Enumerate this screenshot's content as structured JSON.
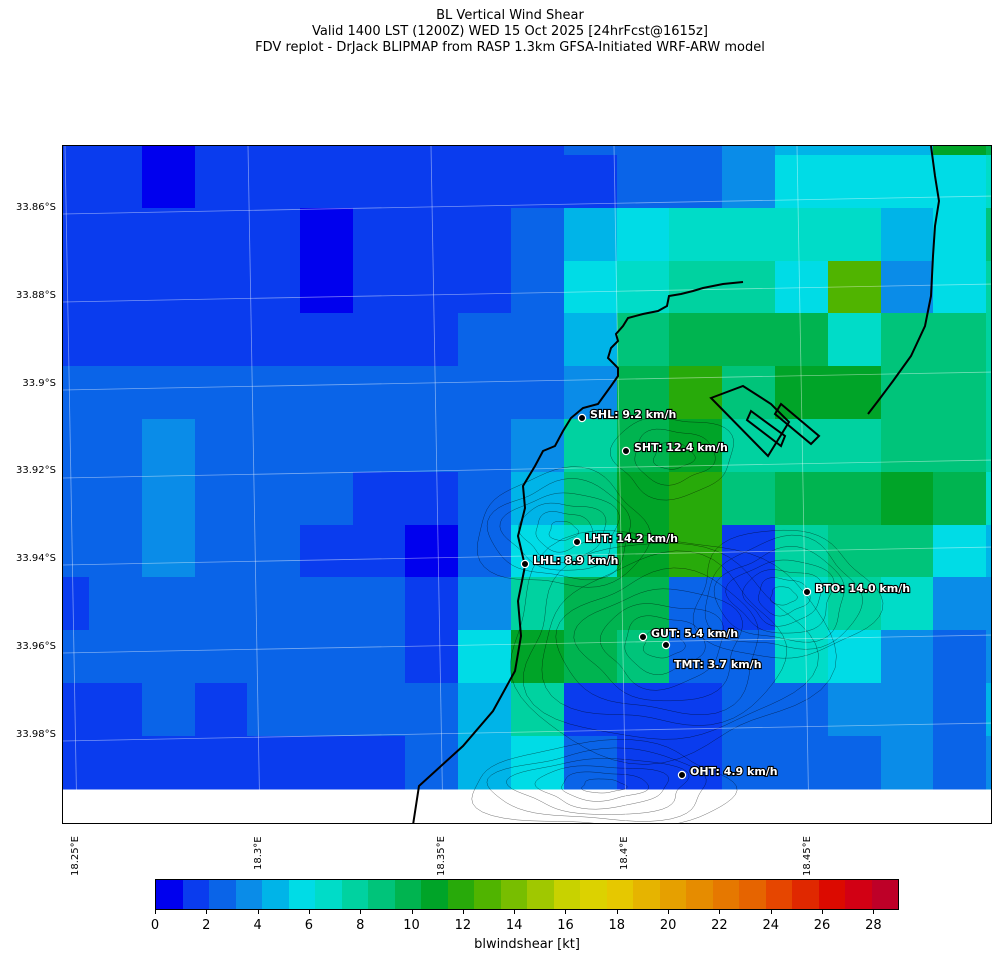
{
  "header": {
    "title": "BL Vertical Wind Shear",
    "valid_line": "Valid 1400 LST (1200Z) WED 15 Oct 2025 [24hrFcst@1615z]",
    "source_line": "FDV replot - DrJack BLIPMAP from RASP 1.3km GFSA-Initiated WRF-ARW model"
  },
  "axes": {
    "lat_labels": [
      "33.86°S",
      "33.88°S",
      "33.9°S",
      "33.92°S",
      "33.94°S",
      "33.96°S",
      "33.98°S"
    ],
    "lon_labels": [
      "18.25°E",
      "18.3°E",
      "18.35°E",
      "18.4°E",
      "18.45°E"
    ]
  },
  "colorbar": {
    "label": "blwindshear [kt]",
    "ticks": [
      "0",
      "2",
      "4",
      "6",
      "8",
      "10",
      "12",
      "14",
      "16",
      "18",
      "20",
      "22",
      "24",
      "26",
      "28"
    ],
    "colors": [
      "#0000ee",
      "#0a3cee",
      "#0a64e8",
      "#0a8ce8",
      "#00b4e8",
      "#00dce6",
      "#00dcc8",
      "#00d2a0",
      "#00c47a",
      "#00b450",
      "#00a428",
      "#28aa0a",
      "#50b400",
      "#78be00",
      "#a0c800",
      "#c8d200",
      "#dcd200",
      "#e6c800",
      "#e6b400",
      "#e6a000",
      "#e68c00",
      "#e67800",
      "#e66400",
      "#e64600",
      "#e02800",
      "#dc0a00",
      "#d20014",
      "#be0028"
    ],
    "range": [
      0,
      29
    ]
  },
  "stations": [
    {
      "label": "SHL: 9.2 km/h",
      "value_kmh": 9.2
    },
    {
      "label": "SHT: 12.4 km/h",
      "value_kmh": 12.4
    },
    {
      "label": "LHT: 14.2 km/h",
      "value_kmh": 14.2
    },
    {
      "label": "LHL: 8.9 km/h",
      "value_kmh": 8.9
    },
    {
      "label": "BTO: 14.0 km/h",
      "value_kmh": 14.0
    },
    {
      "label": "GUT: 5.4 km/h",
      "value_kmh": 5.4
    },
    {
      "label": "TMT: 3.7 km/h",
      "value_kmh": 3.7
    },
    {
      "label": "OHT: 4.9 km/h",
      "value_kmh": 4.9
    }
  ],
  "grid_values_kt": [
    [
      1,
      1,
      0,
      1,
      1,
      1,
      1,
      1,
      1,
      1,
      2,
      2,
      2,
      3,
      4,
      4,
      4,
      10,
      9
    ],
    [
      1,
      1,
      0,
      1,
      1,
      1,
      1,
      1,
      1,
      1,
      1,
      2,
      2,
      3,
      5,
      5,
      5,
      5,
      6
    ],
    [
      1,
      1,
      1,
      1,
      1,
      0,
      1,
      1,
      1,
      2,
      4,
      5,
      6,
      6,
      6,
      6,
      4,
      5,
      8
    ],
    [
      1,
      1,
      1,
      1,
      1,
      0,
      1,
      1,
      1,
      2,
      5,
      6,
      7,
      7,
      5,
      12,
      3,
      5,
      7
    ],
    [
      1,
      1,
      1,
      1,
      1,
      1,
      1,
      1,
      2,
      2,
      4,
      8,
      9,
      9,
      9,
      6,
      8,
      8,
      7
    ],
    [
      2,
      2,
      2,
      2,
      2,
      2,
      2,
      2,
      2,
      2,
      3,
      9,
      11,
      8,
      10,
      10,
      8,
      8,
      7
    ],
    [
      2,
      2,
      3,
      2,
      2,
      2,
      2,
      2,
      2,
      3,
      7,
      9,
      10,
      7,
      7,
      7,
      8,
      8,
      7
    ],
    [
      2,
      2,
      3,
      2,
      2,
      2,
      1,
      1,
      2,
      4,
      8,
      10,
      11,
      8,
      9,
      9,
      10,
      9,
      6
    ],
    [
      2,
      2,
      3,
      2,
      2,
      1,
      1,
      0,
      2,
      5,
      6,
      10,
      11,
      1,
      7,
      8,
      8,
      5,
      4
    ],
    [
      1,
      2,
      2,
      2,
      2,
      2,
      2,
      1,
      3,
      7,
      9,
      9,
      2,
      1,
      6,
      7,
      6,
      3,
      3
    ],
    [
      2,
      2,
      2,
      2,
      2,
      2,
      2,
      1,
      5,
      10,
      9,
      8,
      2,
      2,
      6,
      5,
      3,
      2,
      3
    ],
    [
      1,
      1,
      2,
      1,
      2,
      2,
      2,
      2,
      4,
      7,
      1,
      1,
      1,
      2,
      2,
      3,
      3,
      2,
      4
    ],
    [
      1,
      1,
      1,
      1,
      1,
      1,
      1,
      2,
      4,
      5,
      2,
      1,
      1,
      2,
      2,
      2,
      3,
      2,
      3
    ]
  ]
}
